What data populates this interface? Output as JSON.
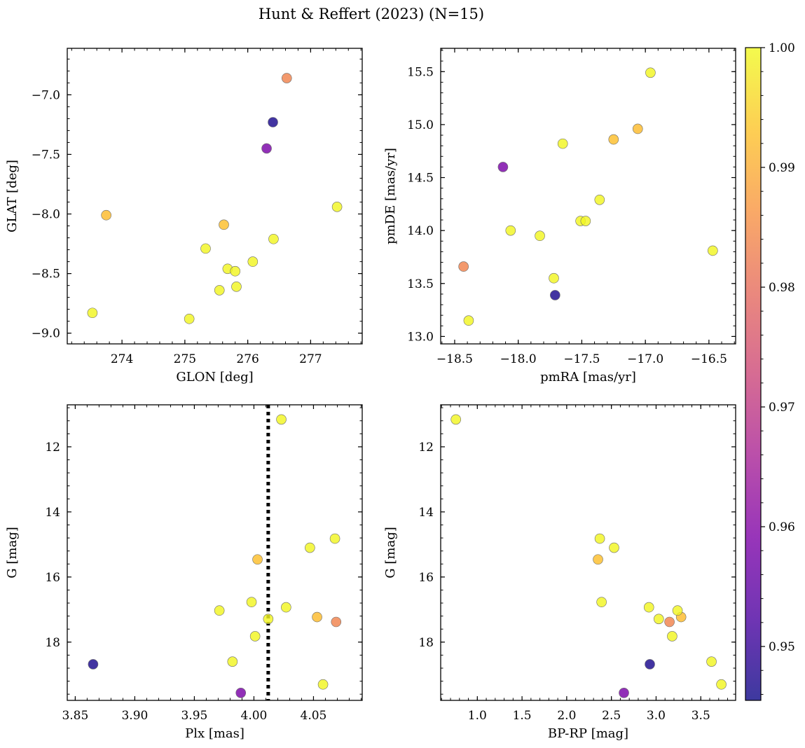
{
  "chart_data": {
    "type": "scatter",
    "title": "Hunt & Reffert (2023) (N=15)",
    "colormap": "plasma",
    "colorbar": {
      "range": [
        0.9455,
        1.0
      ],
      "ticks": [
        0.95,
        0.96,
        0.97,
        0.98,
        0.99,
        1.0
      ],
      "tick_labels": [
        "0.95",
        "0.96",
        "0.97",
        "0.98",
        "0.99",
        "1.00"
      ]
    },
    "panels": [
      {
        "xlabel": "GLON [deg]",
        "ylabel": "GLAT [deg]",
        "xlim": [
          273.13,
          277.82
        ],
        "ylim": [
          -9.09,
          -6.61
        ],
        "xticks": [
          274,
          275,
          276,
          277
        ],
        "xtick_labels": [
          "274",
          "275",
          "276",
          "277"
        ],
        "yticks": [
          -7.0,
          -7.5,
          -8.0,
          -8.5,
          -9.0
        ],
        "ytick_labels": [
          "−7.0",
          "−7.5",
          "−8.0",
          "−8.5",
          "−9.0"
        ],
        "x_minor_step": 0.2,
        "y_minor_step": 0.1,
        "x_key": "glon",
        "y_key": "glat"
      },
      {
        "xlabel": "pmRA [mas/yr]",
        "ylabel": "pmDE [mas/yr]",
        "xlim": [
          -18.61,
          -16.29
        ],
        "ylim": [
          12.93,
          15.72
        ],
        "xticks": [
          -18.5,
          -18.0,
          -17.5,
          -17.0,
          -16.5
        ],
        "xtick_labels": [
          "−18.5",
          "−18.0",
          "−17.5",
          "−17.0",
          "−16.5"
        ],
        "yticks": [
          13.0,
          13.5,
          14.0,
          14.5,
          15.0,
          15.5
        ],
        "ytick_labels": [
          "13.0",
          "13.5",
          "14.0",
          "14.5",
          "15.0",
          "15.5"
        ],
        "x_minor_step": 0.1,
        "y_minor_step": 0.1,
        "x_key": "pmra",
        "y_key": "pmde"
      },
      {
        "xlabel": "Plx [mas]",
        "ylabel": "G [mag]",
        "xlim": [
          3.8433,
          4.0909
        ],
        "ylim": [
          19.79,
          10.71
        ],
        "xticks": [
          3.85,
          3.9,
          3.95,
          4.0,
          4.05
        ],
        "xtick_labels": [
          "3.85",
          "3.90",
          "3.95",
          "4.00",
          "4.05"
        ],
        "yticks": [
          12,
          14,
          16,
          18
        ],
        "ytick_labels": [
          "12",
          "14",
          "16",
          "18"
        ],
        "x_minor_step": 0.01,
        "y_minor_step": 0.4,
        "x_key": "plx",
        "y_key": "g",
        "vline": 4.012
      },
      {
        "xlabel": "BP-RP [mag]",
        "ylabel": "G [mag]",
        "xlim": [
          0.59,
          3.89
        ],
        "ylim": [
          19.79,
          10.71
        ],
        "xticks": [
          1.0,
          1.5,
          2.0,
          2.5,
          3.0,
          3.5
        ],
        "xtick_labels": [
          "1.0",
          "1.5",
          "2.0",
          "2.5",
          "3.0",
          "3.5"
        ],
        "yticks": [
          12,
          14,
          16,
          18
        ],
        "ytick_labels": [
          "12",
          "14",
          "16",
          "18"
        ],
        "x_minor_step": 0.1,
        "y_minor_step": 0.4,
        "x_key": "bprp",
        "y_key": "g"
      }
    ],
    "stars": [
      {
        "glon": 276.4,
        "glat": -7.23,
        "pmra": -17.71,
        "pmde": 13.39,
        "plx": 3.865,
        "g": 18.68,
        "bprp": 2.93,
        "prob": 0.9468
      },
      {
        "glon": 276.3,
        "glat": -7.45,
        "pmra": -18.12,
        "pmde": 14.6,
        "plx": 3.989,
        "g": 19.56,
        "bprp": 2.64,
        "prob": 0.9585
      },
      {
        "glon": 276.62,
        "glat": -6.86,
        "pmra": -18.43,
        "pmde": 13.66,
        "plx": 4.069,
        "g": 17.38,
        "bprp": 3.15,
        "prob": 0.9835
      },
      {
        "glon": 273.75,
        "glat": -8.01,
        "pmra": -17.06,
        "pmde": 14.96,
        "plx": 4.053,
        "g": 17.23,
        "bprp": 3.28,
        "prob": 0.992
      },
      {
        "glon": 275.62,
        "glat": -8.09,
        "pmra": -17.25,
        "pmde": 14.86,
        "plx": 4.003,
        "g": 15.46,
        "bprp": 2.35,
        "prob": 0.9925
      },
      {
        "glon": 277.42,
        "glat": -7.94,
        "pmra": -16.96,
        "pmde": 15.49,
        "plx": 4.023,
        "g": 11.16,
        "bprp": 0.76,
        "prob": 0.9995
      },
      {
        "glon": 276.41,
        "glat": -8.21,
        "pmra": -17.65,
        "pmde": 14.82,
        "plx": 4.068,
        "g": 14.82,
        "bprp": 2.37,
        "prob": 0.9995
      },
      {
        "glon": 275.33,
        "glat": -8.29,
        "pmra": -18.06,
        "pmde": 14.0,
        "plx": 4.047,
        "g": 15.1,
        "bprp": 2.53,
        "prob": 0.9995
      },
      {
        "glon": 276.08,
        "glat": -8.4,
        "pmra": -17.36,
        "pmde": 14.29,
        "plx": 3.998,
        "g": 16.77,
        "bprp": 2.39,
        "prob": 0.9995
      },
      {
        "glon": 275.68,
        "glat": -8.46,
        "pmra": -17.83,
        "pmde": 13.95,
        "plx": 4.027,
        "g": 16.93,
        "bprp": 2.92,
        "prob": 0.9995
      },
      {
        "glon": 275.8,
        "glat": -8.48,
        "pmra": -17.51,
        "pmde": 14.09,
        "plx": 3.971,
        "g": 17.03,
        "bprp": 3.24,
        "prob": 0.9995
      },
      {
        "glon": 275.55,
        "glat": -8.64,
        "pmra": -17.47,
        "pmde": 14.09,
        "plx": 4.012,
        "g": 17.29,
        "bprp": 3.03,
        "prob": 0.9995
      },
      {
        "glon": 275.82,
        "glat": -8.61,
        "pmra": -16.47,
        "pmde": 13.81,
        "plx": 4.001,
        "g": 17.82,
        "bprp": 3.18,
        "prob": 0.9995
      },
      {
        "glon": 273.53,
        "glat": -8.83,
        "pmra": -17.72,
        "pmde": 13.55,
        "plx": 3.982,
        "g": 18.6,
        "bprp": 3.62,
        "prob": 0.9995
      },
      {
        "glon": 275.07,
        "glat": -8.88,
        "pmra": -18.39,
        "pmde": 13.15,
        "plx": 4.058,
        "g": 19.3,
        "bprp": 3.73,
        "prob": 0.9995
      }
    ]
  }
}
